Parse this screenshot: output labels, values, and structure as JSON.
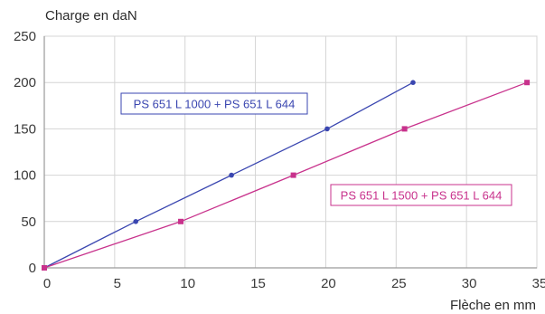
{
  "chart_data": {
    "type": "line",
    "ylabel": "Charge en daN",
    "xlabel": "Flèche en mm",
    "xlim": [
      0,
      35
    ],
    "ylim": [
      0,
      250
    ],
    "x_ticks": [
      0,
      5,
      10,
      15,
      20,
      25,
      30,
      35
    ],
    "y_ticks": [
      0,
      50,
      100,
      150,
      200,
      250
    ],
    "grid": true,
    "series": [
      {
        "name": "PS 651 L 1000 + PS 651 L 644",
        "color": "#3a46b0",
        "marker": "circle",
        "points": [
          [
            0,
            0
          ],
          [
            6.5,
            50
          ],
          [
            13.3,
            100
          ],
          [
            20.1,
            150
          ],
          [
            26.2,
            200
          ]
        ]
      },
      {
        "name": "PS 651 L 1500 + PS 651 L 644",
        "color": "#c8328c",
        "marker": "square",
        "points": [
          [
            0,
            0
          ],
          [
            9.7,
            50
          ],
          [
            17.7,
            100
          ],
          [
            25.6,
            150
          ],
          [
            34.3,
            200
          ]
        ]
      }
    ]
  }
}
